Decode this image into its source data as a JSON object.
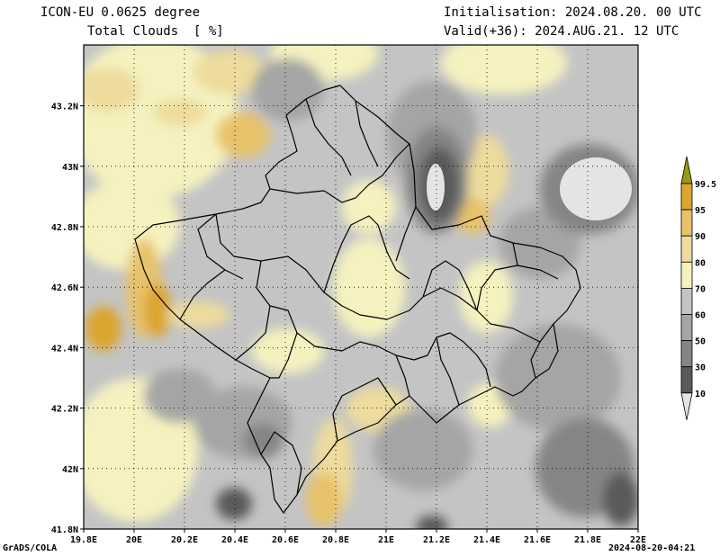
{
  "header": {
    "model": "ICON-EU 0.0625 degree",
    "field": "Total Clouds  [ %]",
    "initialisation": "Initialisation: 2024.08.20. 00 UTC",
    "valid": "Valid(+36): 2024.AUG.21. 12 UTC"
  },
  "footer": {
    "credit": "GrADS/COLA",
    "timestamp": "2024-08-20-04:21"
  },
  "map": {
    "lon_ticks": [
      "19.8E",
      "20E",
      "20.2E",
      "20.4E",
      "20.6E",
      "20.8E",
      "21E",
      "21.2E",
      "21.4E",
      "21.6E",
      "21.8E",
      "22E"
    ],
    "lat_ticks": [
      "41.8N",
      "42N",
      "42.2N",
      "42.4N",
      "42.6N",
      "42.8N",
      "43N",
      "43.2N"
    ]
  },
  "colorbar": {
    "levels": [
      "10",
      "30",
      "50",
      "60",
      "70",
      "80",
      "90",
      "95",
      "99.5"
    ],
    "colors": [
      "#e4e4e4",
      "#5a5a5a",
      "#858585",
      "#a5a5a5",
      "#c4c4c4",
      "#f5f2bf",
      "#eddc9d",
      "#e7c26a",
      "#dca52e",
      "#9a9a14"
    ]
  }
}
